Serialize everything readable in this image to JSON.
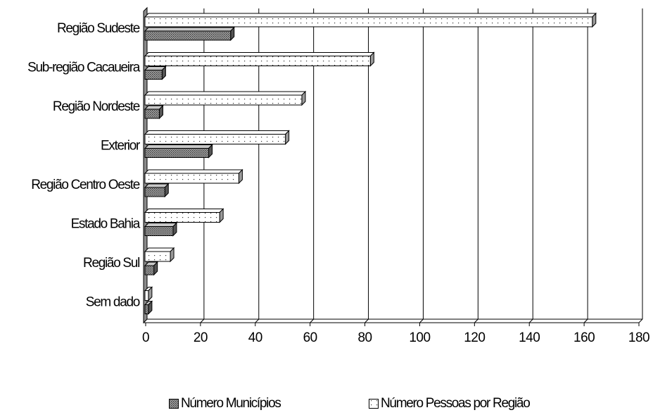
{
  "chart_data": {
    "type": "bar",
    "orientation": "horizontal",
    "style": "3d",
    "categories": [
      "Região Sudeste",
      "Sub-região Cacaueira",
      "Região Nordeste",
      "Exterior",
      "Região Centro Oeste",
      "Estado Bahia",
      "Região Sul",
      "Sem dado"
    ],
    "series": [
      {
        "name": "Número Pessoas por Região",
        "values": [
          163,
          82,
          57,
          51,
          34,
          27,
          9,
          1
        ],
        "color": "#ffffff",
        "pattern": "dots"
      },
      {
        "name": "Número Municípios",
        "values": [
          31,
          6,
          5,
          23,
          7,
          10,
          3,
          1
        ],
        "color": "#888888",
        "pattern": "crosshatch"
      }
    ],
    "xlim": [
      0,
      180
    ],
    "xticks": [
      0,
      20,
      40,
      60,
      80,
      100,
      120,
      140,
      160,
      180
    ],
    "grid": true,
    "legend": {
      "position": "bottom",
      "entries": [
        "Número Municípios",
        "Número Pessoas por Região"
      ]
    }
  }
}
